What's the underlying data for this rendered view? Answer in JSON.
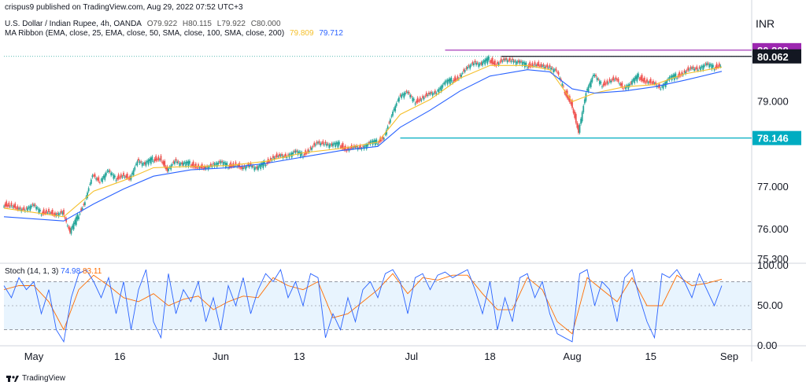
{
  "publisher": "crispus9 published on TradingView.com, Aug 29, 2022 07:52 UTC+3",
  "symbol": {
    "name": "U.S. Dollar / Indian Rupee, 4h, OANDA",
    "open": "O79.922",
    "high": "H80.115",
    "low": "L79.922",
    "close": "C80.000"
  },
  "ma_ribbon": {
    "label": "MA Ribbon (EMA, close, 25, EMA, close, 50, SMA, close, 100, SMA, close, 200)",
    "v1": "79.809",
    "v2": "79.712",
    "colors": [
      "#f5c02c",
      "#2962ff"
    ]
  },
  "stoch": {
    "label": "Stoch (14, 1, 3)",
    "k": "74.98",
    "d": "83.11",
    "colors": {
      "k": "#2962ff",
      "d": "#ff6d00"
    }
  },
  "currency": "INR",
  "footer": "TradingView",
  "chart_data": {
    "type": "candlestick",
    "x_ticks": [
      "May",
      "16",
      "Jun",
      "13",
      "Jul",
      "18",
      "Aug",
      "15",
      "Sep"
    ],
    "y_ticks": [
      "80.208",
      "80.062",
      "79.000",
      "78.146",
      "77.000",
      "76.000",
      "75.300"
    ],
    "ylim": [
      75.3,
      80.5
    ],
    "price_tags": [
      {
        "label": "80.208",
        "value": 80.208,
        "color": "#9c27b0"
      },
      {
        "label": "80.062",
        "value": 80.062,
        "color": "#131722"
      },
      {
        "label": "78.146",
        "value": 78.146,
        "color": "#00acc1"
      }
    ],
    "horizontal_lines": [
      {
        "value": 80.208,
        "color": "#9c27b0",
        "x_from": 0.59,
        "x_to": 1.0
      },
      {
        "value": 80.062,
        "color": "#131722",
        "x_from": 0.665,
        "x_to": 1.0
      },
      {
        "value": 78.146,
        "color": "#00acc1",
        "x_from": 0.53,
        "x_to": 1.0
      }
    ],
    "close_series": [
      [
        0.0,
        76.6
      ],
      [
        0.01,
        76.5
      ],
      [
        0.02,
        76.45
      ],
      [
        0.03,
        76.55
      ],
      [
        0.04,
        76.4
      ],
      [
        0.05,
        76.45
      ],
      [
        0.06,
        76.35
      ],
      [
        0.07,
        76.4
      ],
      [
        0.08,
        75.9
      ],
      [
        0.09,
        76.3
      ],
      [
        0.1,
        76.7
      ],
      [
        0.11,
        77.3
      ],
      [
        0.12,
        77.1
      ],
      [
        0.13,
        77.35
      ],
      [
        0.14,
        77.2
      ],
      [
        0.15,
        77.3
      ],
      [
        0.16,
        77.2
      ],
      [
        0.17,
        77.6
      ],
      [
        0.18,
        77.5
      ],
      [
        0.19,
        77.65
      ],
      [
        0.2,
        77.7
      ],
      [
        0.21,
        77.4
      ],
      [
        0.22,
        77.6
      ],
      [
        0.23,
        77.5
      ],
      [
        0.24,
        77.55
      ],
      [
        0.25,
        77.5
      ],
      [
        0.26,
        77.45
      ],
      [
        0.27,
        77.5
      ],
      [
        0.28,
        77.55
      ],
      [
        0.29,
        77.5
      ],
      [
        0.3,
        77.55
      ],
      [
        0.31,
        77.45
      ],
      [
        0.32,
        77.5
      ],
      [
        0.33,
        77.4
      ],
      [
        0.34,
        77.55
      ],
      [
        0.35,
        77.7
      ],
      [
        0.36,
        77.75
      ],
      [
        0.37,
        77.7
      ],
      [
        0.38,
        77.8
      ],
      [
        0.39,
        77.75
      ],
      [
        0.4,
        77.9
      ],
      [
        0.41,
        78.05
      ],
      [
        0.42,
        78.0
      ],
      [
        0.43,
        77.95
      ],
      [
        0.44,
        78.0
      ],
      [
        0.45,
        77.9
      ],
      [
        0.46,
        77.95
      ],
      [
        0.47,
        77.9
      ],
      [
        0.48,
        78.0
      ],
      [
        0.49,
        78.05
      ],
      [
        0.5,
        78.2
      ],
      [
        0.51,
        78.7
      ],
      [
        0.52,
        79.1
      ],
      [
        0.53,
        79.2
      ],
      [
        0.54,
        79.0
      ],
      [
        0.55,
        79.1
      ],
      [
        0.56,
        79.2
      ],
      [
        0.57,
        79.2
      ],
      [
        0.58,
        79.4
      ],
      [
        0.59,
        79.5
      ],
      [
        0.6,
        79.6
      ],
      [
        0.61,
        79.8
      ],
      [
        0.62,
        79.9
      ],
      [
        0.63,
        79.85
      ],
      [
        0.64,
        80.0
      ],
      [
        0.65,
        79.9
      ],
      [
        0.66,
        80.0
      ],
      [
        0.67,
        79.95
      ],
      [
        0.68,
        79.9
      ],
      [
        0.69,
        79.85
      ],
      [
        0.7,
        79.9
      ],
      [
        0.71,
        79.85
      ],
      [
        0.72,
        79.8
      ],
      [
        0.73,
        79.7
      ],
      [
        0.74,
        79.3
      ],
      [
        0.75,
        79.0
      ],
      [
        0.76,
        78.3
      ],
      [
        0.77,
        79.2
      ],
      [
        0.78,
        79.6
      ],
      [
        0.79,
        79.4
      ],
      [
        0.8,
        79.5
      ],
      [
        0.81,
        79.55
      ],
      [
        0.82,
        79.3
      ],
      [
        0.83,
        79.4
      ],
      [
        0.84,
        79.6
      ],
      [
        0.85,
        79.5
      ],
      [
        0.86,
        79.45
      ],
      [
        0.87,
        79.3
      ],
      [
        0.88,
        79.5
      ],
      [
        0.89,
        79.6
      ],
      [
        0.9,
        79.7
      ],
      [
        0.91,
        79.8
      ],
      [
        0.92,
        79.75
      ],
      [
        0.93,
        79.85
      ],
      [
        0.94,
        79.8
      ],
      [
        0.95,
        79.9
      ],
      [
        0.96,
        80.0
      ]
    ],
    "ema_series": [
      [
        0.0,
        76.5
      ],
      [
        0.08,
        76.3
      ],
      [
        0.12,
        76.9
      ],
      [
        0.16,
        77.15
      ],
      [
        0.2,
        77.45
      ],
      [
        0.25,
        77.48
      ],
      [
        0.3,
        77.5
      ],
      [
        0.35,
        77.6
      ],
      [
        0.4,
        77.8
      ],
      [
        0.45,
        77.9
      ],
      [
        0.5,
        78.05
      ],
      [
        0.53,
        78.7
      ],
      [
        0.57,
        79.05
      ],
      [
        0.61,
        79.55
      ],
      [
        0.65,
        79.85
      ],
      [
        0.7,
        79.85
      ],
      [
        0.73,
        79.75
      ],
      [
        0.76,
        79.0
      ],
      [
        0.79,
        79.2
      ],
      [
        0.83,
        79.35
      ],
      [
        0.87,
        79.4
      ],
      [
        0.91,
        79.65
      ],
      [
        0.96,
        79.81
      ]
    ],
    "sma_series": [
      [
        0.0,
        76.3
      ],
      [
        0.08,
        76.2
      ],
      [
        0.12,
        76.6
      ],
      [
        0.16,
        76.95
      ],
      [
        0.2,
        77.25
      ],
      [
        0.25,
        77.4
      ],
      [
        0.3,
        77.45
      ],
      [
        0.35,
        77.55
      ],
      [
        0.4,
        77.7
      ],
      [
        0.45,
        77.85
      ],
      [
        0.5,
        77.95
      ],
      [
        0.53,
        78.4
      ],
      [
        0.57,
        78.8
      ],
      [
        0.61,
        79.25
      ],
      [
        0.65,
        79.6
      ],
      [
        0.7,
        79.75
      ],
      [
        0.73,
        79.7
      ],
      [
        0.76,
        79.3
      ],
      [
        0.79,
        79.2
      ],
      [
        0.83,
        79.25
      ],
      [
        0.87,
        79.35
      ],
      [
        0.91,
        79.5
      ],
      [
        0.96,
        79.71
      ]
    ],
    "stoch_ylim": [
      0,
      100
    ],
    "stoch_ticks": [
      "100.00",
      "50.00",
      "0.00"
    ],
    "stoch_band": [
      20,
      80
    ],
    "stoch_k": [
      [
        0.0,
        75
      ],
      [
        0.01,
        60
      ],
      [
        0.02,
        85
      ],
      [
        0.03,
        70
      ],
      [
        0.04,
        80
      ],
      [
        0.05,
        40
      ],
      [
        0.06,
        70
      ],
      [
        0.07,
        20
      ],
      [
        0.08,
        5
      ],
      [
        0.09,
        60
      ],
      [
        0.1,
        90
      ],
      [
        0.11,
        95
      ],
      [
        0.12,
        80
      ],
      [
        0.13,
        60
      ],
      [
        0.14,
        85
      ],
      [
        0.15,
        40
      ],
      [
        0.16,
        80
      ],
      [
        0.17,
        20
      ],
      [
        0.18,
        70
      ],
      [
        0.19,
        95
      ],
      [
        0.2,
        30
      ],
      [
        0.21,
        10
      ],
      [
        0.22,
        90
      ],
      [
        0.23,
        40
      ],
      [
        0.24,
        70
      ],
      [
        0.25,
        55
      ],
      [
        0.26,
        80
      ],
      [
        0.27,
        30
      ],
      [
        0.28,
        60
      ],
      [
        0.29,
        20
      ],
      [
        0.3,
        75
      ],
      [
        0.31,
        50
      ],
      [
        0.32,
        85
      ],
      [
        0.33,
        40
      ],
      [
        0.34,
        70
      ],
      [
        0.35,
        90
      ],
      [
        0.36,
        80
      ],
      [
        0.37,
        95
      ],
      [
        0.38,
        60
      ],
      [
        0.39,
        80
      ],
      [
        0.4,
        50
      ],
      [
        0.41,
        90
      ],
      [
        0.42,
        85
      ],
      [
        0.43,
        10
      ],
      [
        0.44,
        40
      ],
      [
        0.45,
        20
      ],
      [
        0.46,
        60
      ],
      [
        0.47,
        30
      ],
      [
        0.48,
        70
      ],
      [
        0.49,
        80
      ],
      [
        0.5,
        60
      ],
      [
        0.51,
        90
      ],
      [
        0.52,
        95
      ],
      [
        0.53,
        80
      ],
      [
        0.54,
        40
      ],
      [
        0.55,
        85
      ],
      [
        0.56,
        90
      ],
      [
        0.57,
        70
      ],
      [
        0.58,
        88
      ],
      [
        0.59,
        92
      ],
      [
        0.6,
        85
      ],
      [
        0.61,
        90
      ],
      [
        0.62,
        95
      ],
      [
        0.63,
        70
      ],
      [
        0.64,
        40
      ],
      [
        0.65,
        80
      ],
      [
        0.66,
        20
      ],
      [
        0.67,
        60
      ],
      [
        0.68,
        30
      ],
      [
        0.69,
        85
      ],
      [
        0.7,
        90
      ],
      [
        0.71,
        60
      ],
      [
        0.72,
        80
      ],
      [
        0.73,
        40
      ],
      [
        0.74,
        15
      ],
      [
        0.75,
        10
      ],
      [
        0.76,
        5
      ],
      [
        0.77,
        90
      ],
      [
        0.78,
        95
      ],
      [
        0.79,
        50
      ],
      [
        0.8,
        80
      ],
      [
        0.81,
        70
      ],
      [
        0.82,
        30
      ],
      [
        0.83,
        85
      ],
      [
        0.84,
        95
      ],
      [
        0.85,
        60
      ],
      [
        0.86,
        30
      ],
      [
        0.87,
        10
      ],
      [
        0.88,
        90
      ],
      [
        0.89,
        85
      ],
      [
        0.9,
        95
      ],
      [
        0.91,
        80
      ],
      [
        0.92,
        60
      ],
      [
        0.93,
        90
      ],
      [
        0.94,
        70
      ],
      [
        0.95,
        50
      ],
      [
        0.96,
        75
      ]
    ],
    "stoch_d": [
      [
        0.0,
        70
      ],
      [
        0.02,
        75
      ],
      [
        0.04,
        75
      ],
      [
        0.06,
        55
      ],
      [
        0.08,
        20
      ],
      [
        0.1,
        70
      ],
      [
        0.12,
        88
      ],
      [
        0.14,
        75
      ],
      [
        0.16,
        60
      ],
      [
        0.18,
        55
      ],
      [
        0.2,
        65
      ],
      [
        0.22,
        50
      ],
      [
        0.24,
        58
      ],
      [
        0.26,
        62
      ],
      [
        0.28,
        45
      ],
      [
        0.3,
        55
      ],
      [
        0.32,
        62
      ],
      [
        0.34,
        60
      ],
      [
        0.36,
        85
      ],
      [
        0.38,
        75
      ],
      [
        0.4,
        70
      ],
      [
        0.42,
        80
      ],
      [
        0.44,
        35
      ],
      [
        0.46,
        40
      ],
      [
        0.48,
        55
      ],
      [
        0.5,
        70
      ],
      [
        0.52,
        90
      ],
      [
        0.54,
        65
      ],
      [
        0.56,
        85
      ],
      [
        0.58,
        82
      ],
      [
        0.6,
        88
      ],
      [
        0.62,
        88
      ],
      [
        0.64,
        65
      ],
      [
        0.66,
        45
      ],
      [
        0.68,
        45
      ],
      [
        0.7,
        85
      ],
      [
        0.72,
        70
      ],
      [
        0.74,
        30
      ],
      [
        0.76,
        15
      ],
      [
        0.78,
        85
      ],
      [
        0.8,
        70
      ],
      [
        0.82,
        55
      ],
      [
        0.84,
        85
      ],
      [
        0.86,
        50
      ],
      [
        0.88,
        50
      ],
      [
        0.9,
        88
      ],
      [
        0.92,
        75
      ],
      [
        0.94,
        78
      ],
      [
        0.96,
        83
      ]
    ]
  }
}
